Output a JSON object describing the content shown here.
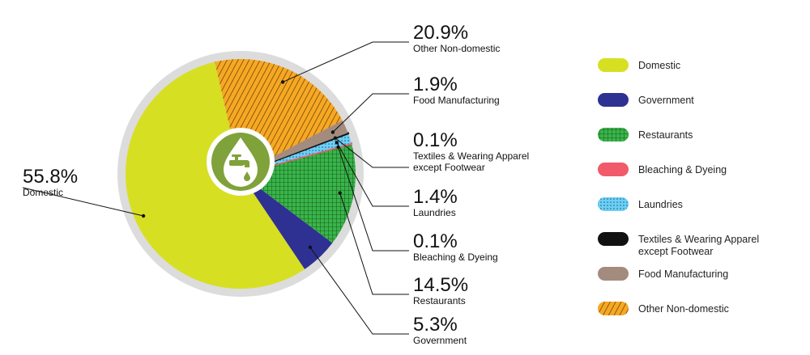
{
  "chart_data": {
    "type": "pie",
    "title": "",
    "series": [
      {
        "name": "Domestic",
        "value": 55.8,
        "label": "55.8%",
        "color": "#d7df23",
        "pattern": "solid"
      },
      {
        "name": "Government",
        "value": 5.3,
        "label": "5.3%",
        "color": "#2e3192",
        "pattern": "solid"
      },
      {
        "name": "Restaurants",
        "value": 14.5,
        "label": "14.5%",
        "color": "#39b54a",
        "pattern": "grid"
      },
      {
        "name": "Bleaching & Dyeing",
        "value": 0.1,
        "label": "0.1%",
        "color": "#f15a6a",
        "pattern": "solid"
      },
      {
        "name": "Laundries",
        "value": 1.4,
        "label": "1.4%",
        "color": "#6dcff6",
        "pattern": "dots"
      },
      {
        "name": "Textiles & Wearing Apparel except Footwear",
        "name_lines": [
          "Textiles & Wearing Apparel",
          "except Footwear"
        ],
        "value": 0.1,
        "label": "0.1%",
        "color": "#111111",
        "pattern": "solid"
      },
      {
        "name": "Food Manufacturing",
        "value": 1.9,
        "label": "1.9%",
        "color": "#a38b7e",
        "pattern": "solid"
      },
      {
        "name": "Other Non-domestic",
        "value": 20.9,
        "label": "20.9%",
        "color": "#f7a823",
        "pattern": "stripes"
      }
    ],
    "legend": {
      "position": "right",
      "items": [
        {
          "name": "Domestic",
          "lines": [
            "Domestic"
          ]
        },
        {
          "name": "Government",
          "lines": [
            "Government"
          ]
        },
        {
          "name": "Restaurants",
          "lines": [
            "Restaurants"
          ]
        },
        {
          "name": "Bleaching & Dyeing",
          "lines": [
            "Bleaching & Dyeing"
          ]
        },
        {
          "name": "Laundries",
          "lines": [
            "Laundries"
          ]
        },
        {
          "name": "Textiles & Wearing Apparel except Footwear",
          "lines": [
            "Textiles & Wearing Apparel",
            "except Footwear"
          ]
        },
        {
          "name": "Food Manufacturing",
          "lines": [
            "Food Manufacturing"
          ]
        },
        {
          "name": "Other Non-domestic",
          "lines": [
            "Other Non-domestic"
          ]
        }
      ]
    },
    "center_icon": "water-drop-tap-icon",
    "ring_color": "#dcdcdc",
    "center_color": "#7fa23a"
  }
}
